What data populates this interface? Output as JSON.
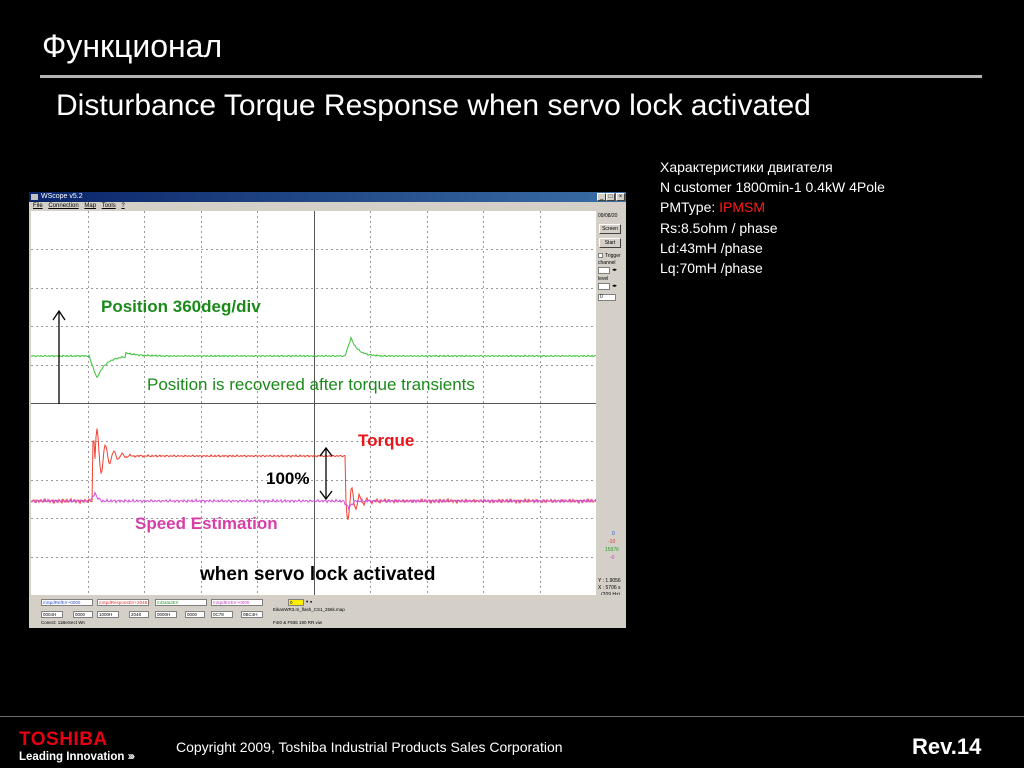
{
  "slide": {
    "title": "Функционал",
    "subtitle": "Disturbance Torque Response when servo lock activated"
  },
  "specs": {
    "heading": "Характеристики двигателя",
    "line1": "N customer 1800min-1 0.4kW 4Pole",
    "pmtype_label": "PMType: ",
    "pmtype_value": "IPMSM",
    "line3": "Rs:8.5ohm / phase",
    "line4": "Ld:43mH /phase",
    "line5": "Lq:70mH /phase",
    "highlight_color": "#ff1a1a"
  },
  "scope_window": {
    "title": "WScope v5.2",
    "menu": [
      "File",
      "Connection",
      "Map",
      "Tools",
      "?"
    ],
    "date": "09/08/20",
    "buttons": {
      "screen": "Screen",
      "start": "Start"
    },
    "trigger_label": "Trigger",
    "channel_label": "channel",
    "level_label": "level",
    "level_value": "0",
    "readout": {
      "y": "Y : 1.9056",
      "x": "X : 5706 s",
      "xhz": "(209 Hz)"
    },
    "right_values": [
      "0",
      "-10",
      "15976",
      "-0"
    ],
    "bottom": {
      "fields": [
        "mSpdRefErr+0000",
        "mSpdResponsErr+2048",
        "mData3Err",
        "mSpdErrErr+0000"
      ],
      "values": [
        "0004H",
        "0000",
        "1000H",
        "2048",
        "0000H",
        "0000",
        "0C78",
        "0BC4H"
      ],
      "marker_value": "0",
      "file1": "EikanWR3.m_flash_CS1_256k.map",
      "file2": "Conect: 11BeSect Wn",
      "file3": "F4I0 & F936 190 RR.viw"
    }
  },
  "annotations": {
    "position_scale": "Position 360deg/div",
    "position_recovered": "Position is recovered after torque transients",
    "torque": "Torque",
    "torque_scale": "100%",
    "speed": "Speed Estimation",
    "servo_lock": "when servo lock activated"
  },
  "colors": {
    "position_trace": "#39c239",
    "torque_trace": "#f04030",
    "speed_trace": "#d24fd8",
    "position_text": "#1b8a1b",
    "torque_text": "#e8161a",
    "speed_text": "#d63fa8"
  },
  "footer": {
    "logo": "TOSHIBA",
    "tagline": "Leading Innovation",
    "tagline_chevrons": "›››",
    "copyright": "Copyright 2009, Toshiba Industrial Products Sales Corporation",
    "revision": "Rev.14"
  }
}
